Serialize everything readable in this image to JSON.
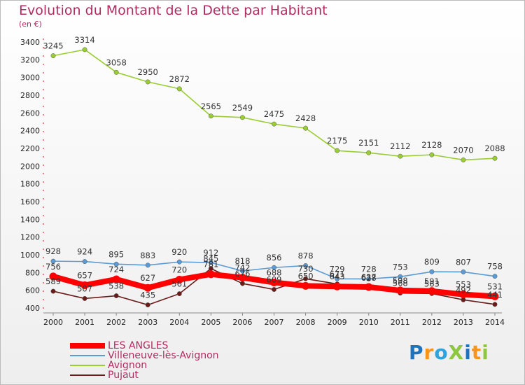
{
  "title": "Evolution du Montant de la Dette par Habitant",
  "subtitle": "(en €)",
  "logo": "ProXiti",
  "chart_data": {
    "type": "line",
    "x": [
      "2000",
      "2001",
      "2002",
      "2003",
      "2004",
      "2005",
      "2006",
      "2007",
      "2008",
      "2009",
      "2010",
      "2011",
      "2012",
      "2013",
      "2014"
    ],
    "ylim": [
      400,
      3400
    ],
    "yticks": [
      400,
      600,
      800,
      1000,
      1200,
      1400,
      1600,
      1800,
      2000,
      2200,
      2400,
      2600,
      2800,
      3000,
      3200,
      3400
    ],
    "grid": false,
    "legend_position": "bottom-left",
    "series": [
      {
        "name": "LES ANGLES",
        "color": "#ff0000",
        "values": [
          756,
          657,
          724,
          627,
          720,
          781,
          742,
          688,
          650,
          643,
          637,
          598,
          591,
          553,
          531
        ]
      },
      {
        "name": "Villeneuve-lès-Avignon",
        "color": "#5b9bd5",
        "values": [
          928,
          924,
          895,
          883,
          920,
          912,
          818,
          856,
          878,
          729,
          728,
          753,
          809,
          807,
          758
        ]
      },
      {
        "name": "Avignon",
        "color": "#9acd32",
        "values": [
          3245,
          3314,
          3058,
          2950,
          2872,
          2565,
          2549,
          2475,
          2428,
          2175,
          2151,
          2112,
          2128,
          2070,
          2088
        ]
      },
      {
        "name": "Pujaut",
        "color": "#6b1a1a",
        "values": [
          589,
          507,
          538,
          435,
          561,
          845,
          676,
          609,
          730,
          671,
          628,
          568,
          563,
          492,
          441
        ]
      }
    ]
  }
}
